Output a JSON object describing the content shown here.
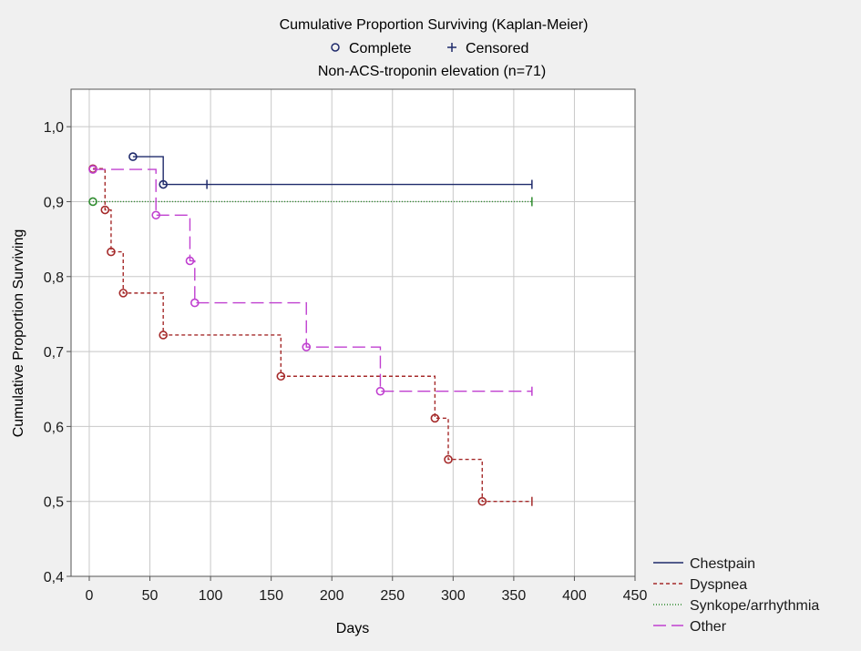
{
  "chart_data": {
    "type": "line",
    "title": "Cumulative Proportion Surviving (Kaplan-Meier)",
    "subtitle": "Non-ACS-troponin elevation (n=71)",
    "marker_legend": [
      {
        "symbol": "o",
        "label": "Complete"
      },
      {
        "symbol": "+",
        "label": "Censored"
      }
    ],
    "xlabel": "Days",
    "ylabel": "Cumulative Proportion Surviving",
    "xlim": [
      -15,
      450
    ],
    "ylim": [
      0.4,
      1.05
    ],
    "xticks": [
      0,
      50,
      100,
      150,
      200,
      250,
      300,
      350,
      400,
      450
    ],
    "xtick_labels": [
      "0",
      "50",
      "100",
      "150",
      "200",
      "250",
      "300",
      "350",
      "400",
      "450"
    ],
    "yticks": [
      0.4,
      0.5,
      0.6,
      0.7,
      0.8,
      0.9,
      1.0
    ],
    "ytick_labels": [
      "0,4",
      "0,5",
      "0,6",
      "0,7",
      "0,8",
      "0,9",
      "1,0"
    ],
    "grid": true,
    "legend_position": "bottom-right outside",
    "series": [
      {
        "name": "Chestpain",
        "color": "#1f2a6b",
        "dash": "solid",
        "x": [
          0,
          36,
          36,
          61,
          61,
          365
        ],
        "y": [
          0.96,
          0.96,
          0.96,
          0.96,
          0.923,
          0.923
        ],
        "complete_points": [
          [
            36,
            0.96
          ],
          [
            61,
            0.923
          ]
        ],
        "censored_points": [
          [
            97,
            0.923
          ],
          [
            365,
            0.923
          ]
        ],
        "start_x": 36
      },
      {
        "name": "Dyspnea",
        "color": "#a52a2a",
        "dash": "short",
        "start_x": 3,
        "steps": [
          [
            3,
            0.944
          ],
          [
            13,
            0.889
          ],
          [
            18,
            0.833
          ],
          [
            28,
            0.778
          ],
          [
            61,
            0.722
          ],
          [
            158,
            0.667
          ],
          [
            285,
            0.611
          ],
          [
            296,
            0.556
          ],
          [
            324,
            0.5
          ]
        ],
        "complete_points": [
          [
            3,
            0.944
          ],
          [
            13,
            0.889
          ],
          [
            18,
            0.833
          ],
          [
            28,
            0.778
          ],
          [
            61,
            0.722
          ],
          [
            158,
            0.667
          ],
          [
            285,
            0.611
          ],
          [
            296,
            0.556
          ],
          [
            324,
            0.5
          ]
        ],
        "censored_points": [
          [
            365,
            0.5
          ]
        ],
        "end_x": 365
      },
      {
        "name": "Synkope/arrhythmia",
        "color": "#2e8b2e",
        "dash": "dot",
        "start_x": 3,
        "steps": [
          [
            3,
            0.9
          ]
        ],
        "complete_points": [
          [
            3,
            0.9
          ]
        ],
        "censored_points": [
          [
            365,
            0.9
          ]
        ],
        "end_x": 365
      },
      {
        "name": "Other",
        "color": "#c040d0",
        "dash": "long",
        "start_x": 3,
        "steps": [
          [
            3,
            0.943
          ],
          [
            55,
            0.882
          ],
          [
            83,
            0.821
          ],
          [
            87,
            0.765
          ],
          [
            179,
            0.706
          ],
          [
            240,
            0.647
          ]
        ],
        "complete_points": [
          [
            3,
            0.943
          ],
          [
            55,
            0.882
          ],
          [
            83,
            0.821
          ],
          [
            87,
            0.765
          ],
          [
            179,
            0.706
          ],
          [
            240,
            0.647
          ]
        ],
        "censored_points": [
          [
            365,
            0.647
          ]
        ],
        "end_x": 365
      }
    ]
  }
}
